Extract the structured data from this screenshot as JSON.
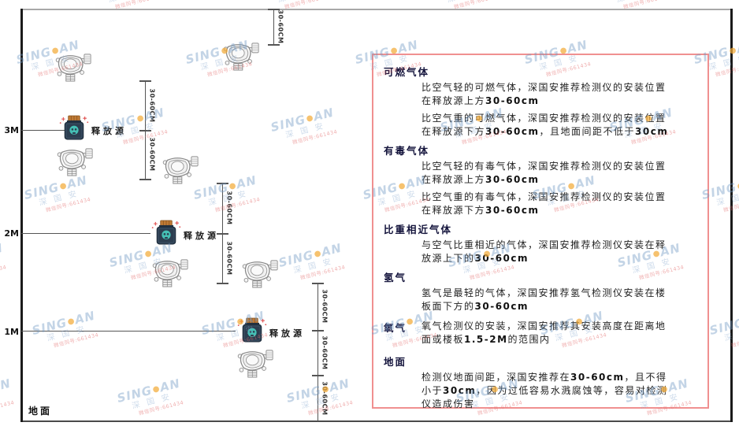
{
  "watermark": {
    "brand_prefix": "SING",
    "dot": "●",
    "brand_suffix": "AN",
    "subtext": "深 国 安",
    "contact": "微信同号:661434"
  },
  "diagram": {
    "height_labels": [
      "3M",
      "2M",
      "1M"
    ],
    "ground_label": "地面",
    "source_label": "释放源",
    "dim_label": "30-60CM"
  },
  "panel": {
    "sections": [
      {
        "heading": "可燃气体",
        "paras": [
          "比空气轻的可燃气体，深国安推荐检测仪的安装位置在释放源上方30-60cm",
          "比空气重的可燃气体，深国安推荐检测仪的安装位置在释放源下方30-60cm，且地面间距不低于30cm"
        ]
      },
      {
        "heading": "有毒气体",
        "paras": [
          "比空气轻的有毒气体，深国安推荐检测仪的安装位置在释放源上方30-60cm",
          "比空气重的有毒气体，深国安推荐检测仪的安装位置在释放源下方30-60cm"
        ]
      },
      {
        "heading": "比重相近气体",
        "paras": [
          "与空气比重相近的气体，深国安推荐检测仪安装在释放源上下的30-60cm"
        ]
      },
      {
        "heading": "氢气",
        "paras": [
          "氢气是最轻的气体，深国安推荐氢气检测仪安装在楼板面下方的30-60cm"
        ]
      },
      {
        "heading": "氧气",
        "paras": [
          "氧气检测仪的安装，深国安推荐其安装高度在距离地面或楼板1.5-2M的范围内"
        ]
      },
      {
        "heading": "地面",
        "paras": [
          "检测仪地面间距，深国安推荐在30-60cm，且不得小于30cm，因为过低容易水溅腐蚀等，容易对检测仪造成伤害"
        ]
      }
    ]
  }
}
